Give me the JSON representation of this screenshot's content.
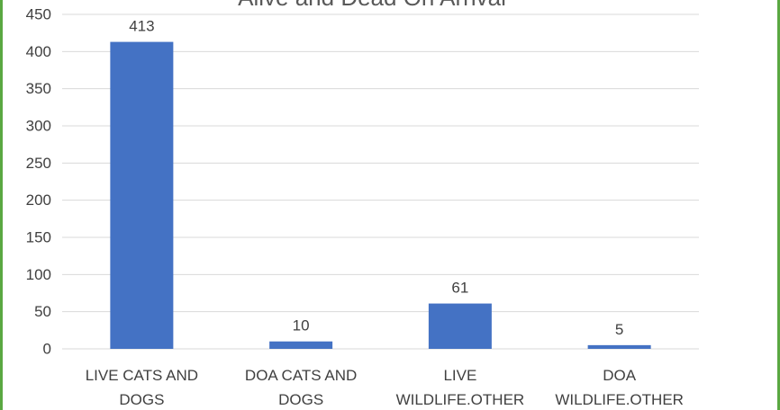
{
  "chart_data": {
    "type": "bar",
    "title": "Alive and Dead On Arrival",
    "categories": [
      "LIVE CATS AND DOGS",
      "DOA CATS AND DOGS",
      "LIVE WILDLIFE.OTHER",
      "DOA WILDLIFE.OTHER"
    ],
    "category_lines": [
      [
        "LIVE CATS AND",
        "DOGS"
      ],
      [
        "DOA CATS AND",
        "DOGS"
      ],
      [
        "LIVE",
        "WILDLIFE.OTHER"
      ],
      [
        "DOA",
        "WILDLIFE.OTHER"
      ]
    ],
    "values": [
      413,
      10,
      61,
      5
    ],
    "data_labels": [
      "413",
      "10",
      "61",
      "5"
    ],
    "ylim": [
      0,
      450
    ],
    "yticks": [
      0,
      50,
      100,
      150,
      200,
      250,
      300,
      350,
      400,
      450
    ],
    "xlabel": "",
    "ylabel": "",
    "grid": true,
    "legend": "none",
    "colors": {
      "bar": "#4472c4",
      "grid": "#d9d9d9",
      "text": "#404040",
      "title": "#595959",
      "frame": "#5aa842"
    }
  }
}
